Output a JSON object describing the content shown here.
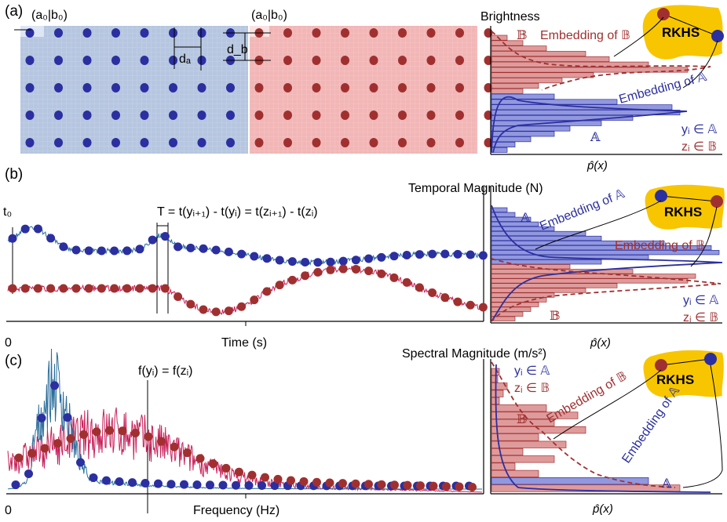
{
  "colors": {
    "blue": "#2b2fa0",
    "red": "#a03030",
    "blue_fill": "#7f86d8",
    "red_fill": "#d98a8a",
    "img_blue": "#b6c6e0",
    "img_red": "#f2b6b6",
    "rkhs": "#f7c600",
    "trace_blue": "#2a6e9a",
    "trace_red": "#c8205a"
  },
  "panel_a": {
    "label": "(a)",
    "coord_left": "(a₀|b₀)",
    "coord_right": "(a₀|b₀)",
    "da": "dₐ",
    "db": "d_b",
    "axis_title": "Brightness",
    "xlabel": "p̂(x)",
    "rkhs": "RKHS",
    "embed_B": "Embedding of 𝔹",
    "embed_A": "Embedding of 𝔸",
    "hist_A": "𝔸",
    "hist_B": "𝔹",
    "legend_y": "yᵢ ∈ 𝔸",
    "legend_z": "zᵢ ∈ 𝔹"
  },
  "panel_b": {
    "label": "(b)",
    "t0": "t₀",
    "formula": "T = t(yᵢ₊₁) - t(yᵢ) = t(zᵢ₊₁) - t(zᵢ)",
    "axis_title": "Temporal Magnitude (N)",
    "xlabel": "Time (s)",
    "zero": "0",
    "phat": "p̂(x)",
    "rkhs": "RKHS",
    "embed_A": "Embedding of 𝔸",
    "embed_B": "Embedding of 𝔹",
    "hist_A": "𝔸",
    "hist_B": "𝔹",
    "legend_y": "yᵢ ∈ 𝔸",
    "legend_z": "zᵢ ∈ 𝔹"
  },
  "panel_c": {
    "label": "(c)",
    "formula": "f(yᵢ) = f(zᵢ)",
    "axis_title": "Spectral Magnitude (m/s²)",
    "xlabel": "Frequency (Hz)",
    "zero": "0",
    "phat": "p̂(x)",
    "rkhs": "RKHS",
    "embed_B": "Embedding of 𝔹",
    "embed_A": "Embedding of 𝔸",
    "hist_A": "𝔸",
    "hist_B": "𝔹",
    "legend_y": "yᵢ ∈ 𝔸",
    "legend_z": "zᵢ ∈ 𝔹"
  }
}
